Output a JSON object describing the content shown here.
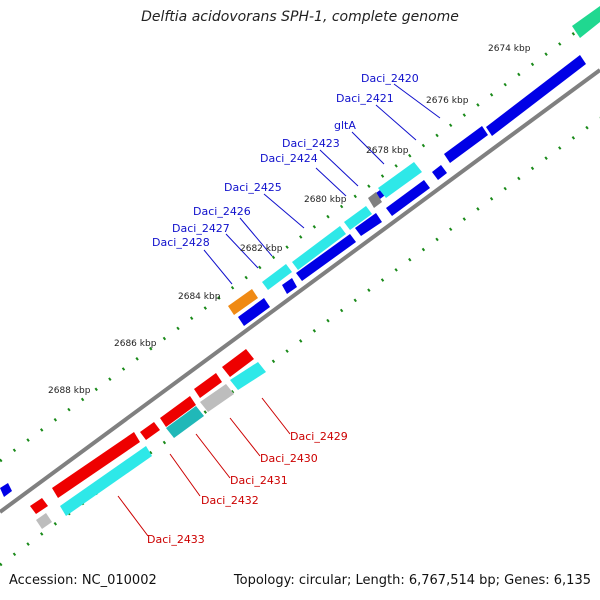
{
  "title": "Delftia acidovorans SPH-1, complete genome",
  "footer": {
    "accession": "Accession: NC_010002",
    "summary": "Topology: circular; Length: 6,767,514 bp; Genes: 6,135"
  },
  "colors": {
    "forward_cds": "#0000e6",
    "reverse_cds": "#ee0000",
    "label_forward": "#1010cc",
    "label_reverse": "#cc0000",
    "cyan_feature": "#2ee8e8",
    "teal_feature": "#20b8b8",
    "gray_feature": "#bdbdbd",
    "orange_feature": "#f08a14",
    "green_feature": "#20d890",
    "backbone": "#808080",
    "tick_dots": "#1a8a1a"
  },
  "tick_labels": [
    "2674 kbp",
    "2676 kbp",
    "2678 kbp",
    "2680 kbp",
    "2682 kbp",
    "2684 kbp",
    "2686 kbp",
    "2688 kbp"
  ],
  "gene_labels_forward": [
    "Daci_2420",
    "Daci_2421",
    "gltA",
    "Daci_2423",
    "Daci_2424",
    "Daci_2425",
    "Daci_2426",
    "Daci_2427",
    "Daci_2428"
  ],
  "gene_labels_reverse": [
    "Daci_2429",
    "Daci_2430",
    "Daci_2431",
    "Daci_2432",
    "Daci_2433"
  ]
}
